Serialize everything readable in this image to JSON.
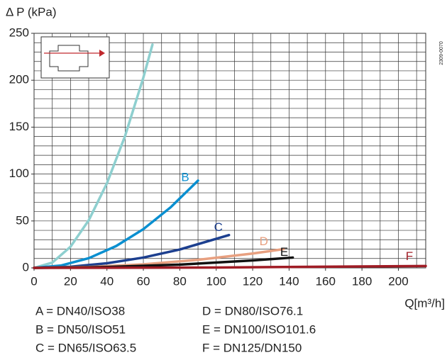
{
  "chart_data": {
    "type": "line",
    "y_label": "Δ P (kPa)",
    "x_label": "Q[m³/h]",
    "code": "2309-0070",
    "xlim": [
      0,
      215
    ],
    "ylim": [
      0,
      250
    ],
    "xticks": [
      0,
      20,
      40,
      60,
      80,
      100,
      120,
      140,
      160,
      180,
      200
    ],
    "yticks": [
      0,
      50,
      100,
      150,
      200,
      250
    ],
    "grid": true,
    "minor_grid": {
      "x": 10,
      "y": 10
    },
    "series": [
      {
        "name": "A",
        "color": "#8ecfcf",
        "x": [
          0,
          10,
          20,
          30,
          40,
          50,
          60,
          65
        ],
        "values": [
          0,
          5.6,
          22.5,
          50.7,
          90.1,
          140.8,
          202.8,
          238
        ]
      },
      {
        "name": "B",
        "color": "#0a8fd0",
        "x": [
          0,
          15,
          30,
          45,
          60,
          75,
          90
        ],
        "values": [
          0,
          2.6,
          10.3,
          23.2,
          41.3,
          64.6,
          93
        ]
      },
      {
        "name": "C",
        "color": "#1c3f8f",
        "x": [
          0,
          20,
          40,
          60,
          80,
          107
        ],
        "values": [
          0,
          1.2,
          4.9,
          11,
          19.6,
          35
        ]
      },
      {
        "name": "D",
        "color": "#e8a080",
        "x": [
          0,
          30,
          60,
          90,
          120,
          137
        ],
        "values": [
          0,
          1,
          3.8,
          8.6,
          15.3,
          20
        ]
      },
      {
        "name": "E",
        "color": "#111111",
        "x": [
          0,
          40,
          80,
          120,
          142
        ],
        "values": [
          0,
          0.9,
          3.5,
          7.9,
          11
        ]
      },
      {
        "name": "F",
        "color": "#a01c25",
        "x": [
          0,
          100,
          215
        ],
        "values": [
          0,
          0.4,
          2
        ]
      }
    ],
    "legend": [
      "A = DN40/ISO38",
      "B = DN50/ISO51",
      "C = DN65/ISO63.5",
      "D = DN80/ISO76.1",
      "E = DN100/ISO101.6",
      "F = DN125/DN150"
    ]
  }
}
